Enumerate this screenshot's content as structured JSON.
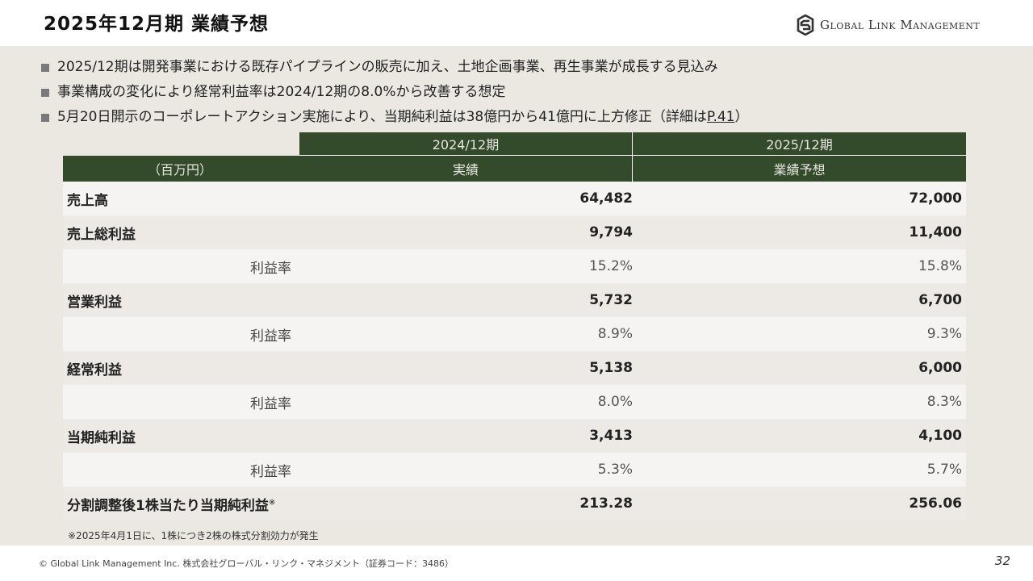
{
  "title": "2025年12月期 業績予想",
  "logo": {
    "text": "Global Link Management",
    "icon": "gls-logo-icon"
  },
  "bullets": [
    "2025/12期は開発事業における既存パイプラインの販売に加え、土地企画事業、再生事業が成長する見込み",
    "事業構成の変化により経常利益率は2024/12期の8.0%から改善する想定",
    {
      "prefix": "5月20日開示のコーポレートアクション実施により、当期純利益は38億円から41億円に上方修正（詳細は",
      "link": "P.41",
      "suffix": "）"
    }
  ],
  "table": {
    "periods": [
      "2024/12期",
      "2025/12期"
    ],
    "unit_label": "（百万円）",
    "column_types": [
      "実績",
      "業績予想"
    ],
    "rows": [
      {
        "label": "売上高",
        "v1": "64,482",
        "v2": "72,000"
      },
      {
        "label": "売上総利益",
        "v1": "9,794",
        "v2": "11,400"
      },
      {
        "label": "利益率",
        "v1": "15.2%",
        "v2": "15.8%"
      },
      {
        "label": "営業利益",
        "v1": "5,732",
        "v2": "6,700"
      },
      {
        "label": "利益率",
        "v1": "8.9%",
        "v2": "9.3%"
      },
      {
        "label": "経常利益",
        "v1": "5,138",
        "v2": "6,000"
      },
      {
        "label": "利益率",
        "v1": "8.0%",
        "v2": "8.3%"
      },
      {
        "label": "当期純利益",
        "v1": "3,413",
        "v2": "4,100"
      },
      {
        "label": "利益率",
        "v1": "5.3%",
        "v2": "5.7%"
      },
      {
        "label": "分割調整後1株当たり当期純利益",
        "mark": "※",
        "v1": "213.28",
        "v2": "256.06"
      }
    ]
  },
  "note": "※2025年4月1日に、1株につき2株の株式分割効力が発生",
  "footer": {
    "copyright": "© Global Link Management Inc.  株式会社グローバル・リンク・マネジメント（証券コード：3486）",
    "page": "32"
  },
  "colors": {
    "header_green": "#334a2b",
    "background": "#ebe8e2"
  }
}
